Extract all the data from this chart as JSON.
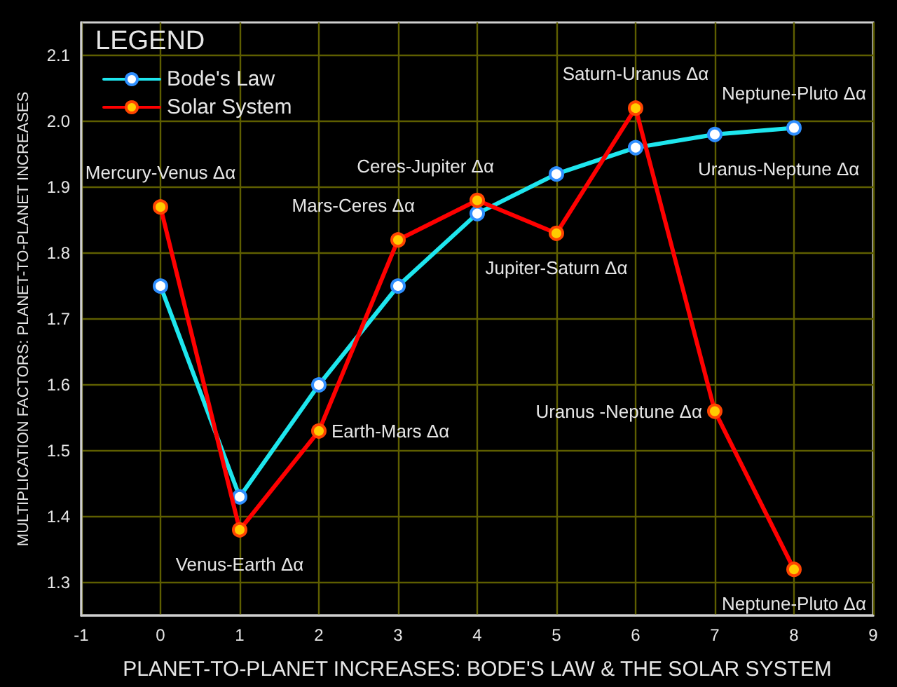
{
  "chart_data": {
    "type": "line",
    "xlabel": "PLANET-TO-PLANET INCREASES: BODE'S LAW & THE SOLAR SYSTEM",
    "ylabel": "MULTIPLICATION FACTORS: PLANET-TO-PLANET INCREASES",
    "legend_title": "LEGEND",
    "x": [
      0,
      1,
      2,
      3,
      4,
      5,
      6,
      7,
      8
    ],
    "series": [
      {
        "name": "Bode's Law",
        "color": "#1ee6ee",
        "values": [
          1.75,
          1.43,
          1.6,
          1.75,
          1.86,
          1.92,
          1.96,
          1.98,
          1.99
        ]
      },
      {
        "name": "Solar System",
        "color": "#ff0000",
        "values": [
          1.87,
          1.38,
          1.53,
          1.82,
          1.88,
          1.83,
          2.02,
          1.56,
          1.32
        ]
      }
    ],
    "xlim": [
      -1,
      9
    ],
    "xticks": [
      -1,
      0,
      1,
      2,
      3,
      4,
      5,
      6,
      7,
      8,
      9
    ],
    "ylim": [
      1.25,
      2.15
    ],
    "yticks": [
      1.3,
      1.4,
      1.5,
      1.6,
      1.7,
      1.8,
      1.9,
      {
        "value": 2,
        "label": "2.0"
      },
      2.1
    ],
    "annotations": [
      {
        "text": "Mercury-Venus Δα",
        "x": 0,
        "y": 1.87
      },
      {
        "text": "Venus-Earth Δα",
        "x": 1,
        "y": 1.38
      },
      {
        "text": "Earth-Mars Δα",
        "x": 2,
        "y": 1.53
      },
      {
        "text": "Mars-Ceres Δα",
        "x": 3,
        "y": 1.82
      },
      {
        "text": "Ceres-Jupiter Δα",
        "x": 4,
        "y": 1.88
      },
      {
        "text": "Jupiter-Saturn Δα",
        "x": 5,
        "y": 1.83
      },
      {
        "text": "Saturn-Uranus Δα",
        "x": 6,
        "y": 2.02
      },
      {
        "text": "Uranus-Neptune Δα",
        "x": 7,
        "y": 1.98
      },
      {
        "text": "Neptune-Pluto Δα",
        "x": 8,
        "y": 1.99
      },
      {
        "text": "Uranus -Neptune Δα",
        "x": 7,
        "y": 1.56
      },
      {
        "text": "Neptune-Pluto Δα",
        "x": 8,
        "y": 1.32
      }
    ],
    "grid": true,
    "legend": "top left",
    "marker": "circle",
    "line_style": "solid"
  }
}
